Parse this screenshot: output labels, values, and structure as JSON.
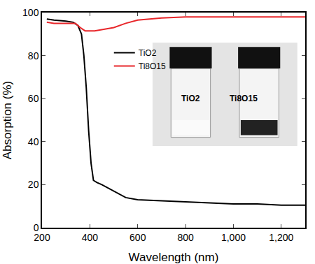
{
  "chart_data": {
    "type": "line",
    "x_label": "Wavelength (nm)",
    "y_label": "Absorption (%)",
    "xlim": [
      200,
      1300
    ],
    "ylim": [
      0,
      100
    ],
    "xticks": [
      200,
      400,
      600,
      800,
      {
        "value": 1000,
        "label": "1,000"
      },
      {
        "value": 1200,
        "label": "1,200"
      }
    ],
    "yticks": [
      0,
      20,
      40,
      60,
      80,
      100
    ],
    "grid": false,
    "legend": "upper center",
    "series": [
      {
        "name": "TiO2",
        "color": "#000000",
        "x": [
          220,
          250,
          300,
          330,
          350,
          365,
          375,
          385,
          395,
          405,
          415,
          430,
          450,
          500,
          550,
          600,
          700,
          800,
          900,
          1000,
          1100,
          1200,
          1300
        ],
        "values": [
          97,
          96.5,
          96,
          95.5,
          94,
          90,
          80,
          65,
          45,
          30,
          22,
          21,
          20,
          17,
          14,
          13,
          12.5,
          12,
          11.5,
          11,
          11,
          10.5,
          10.5
        ]
      },
      {
        "name": "Ti8O15",
        "color": "#e8262a",
        "x": [
          220,
          250,
          300,
          340,
          360,
          380,
          420,
          500,
          550,
          600,
          700,
          800,
          900,
          1000,
          1100,
          1200,
          1300
        ],
        "values": [
          95.5,
          95,
          95,
          95,
          93,
          91.5,
          91.5,
          93,
          95,
          96.5,
          97.5,
          98,
          98,
          98,
          98,
          98,
          98
        ]
      }
    ],
    "annotations": [
      "TiO2",
      "Ti8O15"
    ]
  }
}
